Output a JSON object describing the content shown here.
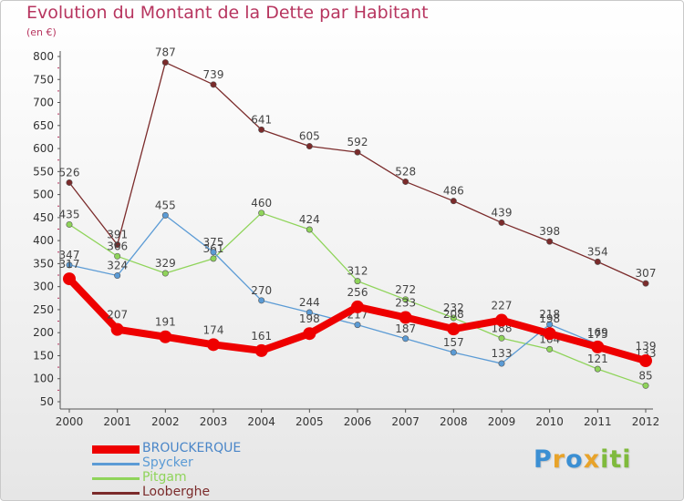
{
  "title": "Evolution du Montant de la Dette par Habitant",
  "subtitle": "(en €)",
  "logo": {
    "letters": [
      "P",
      "r",
      "o",
      "x",
      "i",
      "t",
      "i"
    ],
    "colors": [
      "#3b8fd3",
      "#e8a32a",
      "#3b8fd3",
      "#e8a32a",
      "#7fba3c",
      "#7fba3c",
      "#7fba3c"
    ]
  },
  "chart_data": {
    "type": "line",
    "title": "Evolution du Montant de la Dette par Habitant",
    "ylabel": "(en €)",
    "xlabel": "",
    "x": [
      "2000",
      "2001",
      "2002",
      "2003",
      "2004",
      "2005",
      "2006",
      "2007",
      "2008",
      "2009",
      "2010",
      "2011",
      "2012"
    ],
    "ylim": [
      50,
      800
    ],
    "yticks": [
      50,
      100,
      150,
      200,
      250,
      300,
      350,
      400,
      450,
      500,
      550,
      600,
      650,
      700,
      750,
      800
    ],
    "grid": false,
    "legend": "bottom-left",
    "series": [
      {
        "name": "Looberghe",
        "color": "#7b2b2b",
        "values": [
          526,
          391,
          787,
          739,
          641,
          605,
          592,
          528,
          486,
          439,
          398,
          354,
          307
        ]
      },
      {
        "name": "Pitgam",
        "color": "#8fd45a",
        "values": [
          435,
          366,
          329,
          361,
          460,
          424,
          312,
          272,
          232,
          188,
          164,
          121,
          85
        ]
      },
      {
        "name": "Spycker",
        "color": "#5b9bd5",
        "values": [
          347,
          324,
          455,
          375,
          270,
          244,
          217,
          187,
          157,
          133,
          218,
          175,
          133
        ]
      },
      {
        "name": "BROUCKERQUE",
        "color": "#ee0000",
        "values": [
          317,
          207,
          191,
          174,
          161,
          198,
          256,
          233,
          208,
          227,
          198,
          169,
          139
        ]
      }
    ],
    "legend_order": [
      "BROUCKERQUE",
      "Spycker",
      "Pitgam",
      "Looberghe"
    ]
  }
}
